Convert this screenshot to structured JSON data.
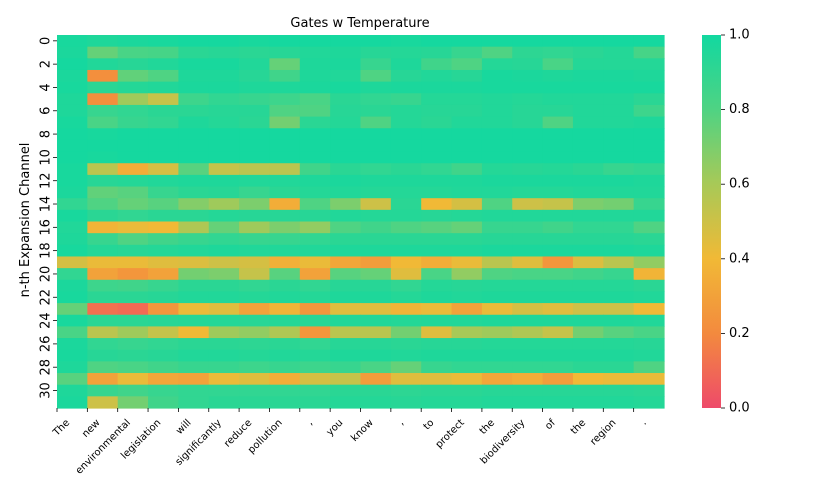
{
  "chart_data": {
    "type": "heatmap",
    "title": "Gates w Temperature",
    "ylabel": "n-th Expansion Channel",
    "xlabel": "",
    "x_tokens": [
      "The",
      "new",
      "environmental",
      "legislation",
      "will",
      "significantly",
      "reduce",
      "pollution",
      ",",
      "you",
      "know",
      ",",
      "to",
      "protect",
      "the",
      "biodiversity",
      "of",
      "the",
      "region",
      "."
    ],
    "y_tick_labels": [
      "0",
      "2",
      "4",
      "6",
      "8",
      "10",
      "12",
      "14",
      "16",
      "18",
      "20",
      "22",
      "24",
      "26",
      "28",
      "30"
    ],
    "colorbar": {
      "min": 0.0,
      "max": 1.0,
      "ticks": [
        "0.0",
        "0.2",
        "0.4",
        "0.6",
        "0.8",
        "1.0"
      ],
      "colors": [
        "#ee4a6a",
        "#f38a3e",
        "#f1b936",
        "#a8c957",
        "#4fd383",
        "#12d8a0"
      ]
    },
    "grid": false,
    "values": [
      [
        0.98,
        0.96,
        0.97,
        0.98,
        0.99,
        0.99,
        0.98,
        0.99,
        0.99,
        0.99,
        0.99,
        0.98,
        0.99,
        0.99,
        0.99,
        0.99,
        0.99,
        0.99,
        0.99,
        0.99
      ],
      [
        0.97,
        0.75,
        0.82,
        0.83,
        0.92,
        0.93,
        0.92,
        0.93,
        0.95,
        0.96,
        0.93,
        0.94,
        0.93,
        0.88,
        0.8,
        0.91,
        0.9,
        0.92,
        0.94,
        0.83
      ],
      [
        0.99,
        0.95,
        0.93,
        0.95,
        0.98,
        0.98,
        0.95,
        0.75,
        0.96,
        0.97,
        0.88,
        0.96,
        0.85,
        0.8,
        0.94,
        0.93,
        0.82,
        0.94,
        0.94,
        0.94
      ],
      [
        0.97,
        0.22,
        0.76,
        0.8,
        0.96,
        0.96,
        0.93,
        0.85,
        0.96,
        0.95,
        0.8,
        0.93,
        0.95,
        0.93,
        0.98,
        0.97,
        0.96,
        0.97,
        0.97,
        0.96
      ],
      [
        0.98,
        0.92,
        0.94,
        0.95,
        0.97,
        0.97,
        0.96,
        0.96,
        0.97,
        0.98,
        0.96,
        0.97,
        0.97,
        0.97,
        0.98,
        0.98,
        0.98,
        0.98,
        0.98,
        0.98
      ],
      [
        0.96,
        0.22,
        0.62,
        0.52,
        0.86,
        0.9,
        0.88,
        0.86,
        0.82,
        0.92,
        0.9,
        0.88,
        0.94,
        0.94,
        0.95,
        0.94,
        0.95,
        0.95,
        0.95,
        0.92
      ],
      [
        0.96,
        0.88,
        0.9,
        0.92,
        0.92,
        0.93,
        0.93,
        0.8,
        0.8,
        0.93,
        0.92,
        0.94,
        0.93,
        0.93,
        0.95,
        0.93,
        0.93,
        0.95,
        0.95,
        0.86
      ],
      [
        0.98,
        0.82,
        0.88,
        0.9,
        0.96,
        0.94,
        0.92,
        0.72,
        0.92,
        0.94,
        0.8,
        0.94,
        0.92,
        0.95,
        0.95,
        0.93,
        0.8,
        0.95,
        0.95,
        0.96
      ],
      [
        0.99,
        0.98,
        0.99,
        0.99,
        0.99,
        0.99,
        0.99,
        0.99,
        0.99,
        0.99,
        0.99,
        0.99,
        0.99,
        0.99,
        0.99,
        0.99,
        0.99,
        0.99,
        0.99,
        0.99
      ],
      [
        0.99,
        0.99,
        0.99,
        0.99,
        0.99,
        0.99,
        0.99,
        0.99,
        0.99,
        0.99,
        0.99,
        0.99,
        0.99,
        0.99,
        0.99,
        0.99,
        0.99,
        0.99,
        0.99,
        0.99
      ],
      [
        0.99,
        0.98,
        0.99,
        0.99,
        0.99,
        0.99,
        0.99,
        0.99,
        0.99,
        0.99,
        0.99,
        0.99,
        0.99,
        0.99,
        0.99,
        0.99,
        0.99,
        0.99,
        0.99,
        0.99
      ],
      [
        0.98,
        0.55,
        0.35,
        0.48,
        0.78,
        0.52,
        0.55,
        0.55,
        0.85,
        0.92,
        0.9,
        0.92,
        0.9,
        0.85,
        0.94,
        0.93,
        0.94,
        0.92,
        0.88,
        0.9
      ],
      [
        0.98,
        0.93,
        0.94,
        0.95,
        0.96,
        0.96,
        0.95,
        0.95,
        0.96,
        0.97,
        0.96,
        0.96,
        0.96,
        0.96,
        0.97,
        0.97,
        0.97,
        0.97,
        0.97,
        0.96
      ],
      [
        0.97,
        0.76,
        0.78,
        0.88,
        0.92,
        0.93,
        0.88,
        0.92,
        0.94,
        0.95,
        0.94,
        0.94,
        0.94,
        0.95,
        0.95,
        0.94,
        0.94,
        0.95,
        0.95,
        0.95
      ],
      [
        0.9,
        0.8,
        0.75,
        0.78,
        0.68,
        0.62,
        0.7,
        0.35,
        0.8,
        0.7,
        0.5,
        0.92,
        0.4,
        0.48,
        0.8,
        0.5,
        0.52,
        0.7,
        0.72,
        0.88
      ],
      [
        0.98,
        0.92,
        0.9,
        0.92,
        0.92,
        0.94,
        0.93,
        0.93,
        0.93,
        0.95,
        0.94,
        0.94,
        0.93,
        0.94,
        0.95,
        0.95,
        0.95,
        0.95,
        0.95,
        0.95
      ],
      [
        0.95,
        0.38,
        0.42,
        0.4,
        0.58,
        0.75,
        0.62,
        0.7,
        0.65,
        0.8,
        0.85,
        0.8,
        0.78,
        0.75,
        0.88,
        0.88,
        0.85,
        0.9,
        0.9,
        0.8
      ],
      [
        0.96,
        0.88,
        0.8,
        0.85,
        0.88,
        0.9,
        0.88,
        0.88,
        0.9,
        0.92,
        0.92,
        0.92,
        0.92,
        0.92,
        0.93,
        0.93,
        0.93,
        0.93,
        0.93,
        0.92
      ],
      [
        0.98,
        0.94,
        0.93,
        0.94,
        0.95,
        0.96,
        0.95,
        0.95,
        0.95,
        0.96,
        0.96,
        0.96,
        0.96,
        0.96,
        0.97,
        0.97,
        0.97,
        0.97,
        0.97,
        0.96
      ],
      [
        0.48,
        0.42,
        0.42,
        0.45,
        0.46,
        0.5,
        0.48,
        0.36,
        0.42,
        0.32,
        0.28,
        0.4,
        0.35,
        0.42,
        0.55,
        0.45,
        0.25,
        0.46,
        0.55,
        0.65
      ],
      [
        0.9,
        0.3,
        0.25,
        0.3,
        0.72,
        0.7,
        0.52,
        0.78,
        0.3,
        0.78,
        0.75,
        0.45,
        0.82,
        0.65,
        0.8,
        0.82,
        0.82,
        0.85,
        0.88,
        0.38
      ],
      [
        0.97,
        0.86,
        0.85,
        0.88,
        0.92,
        0.92,
        0.9,
        0.92,
        0.9,
        0.93,
        0.93,
        0.9,
        0.94,
        0.93,
        0.94,
        0.94,
        0.94,
        0.94,
        0.94,
        0.92
      ],
      [
        0.98,
        0.92,
        0.92,
        0.93,
        0.95,
        0.95,
        0.94,
        0.95,
        0.94,
        0.96,
        0.96,
        0.94,
        0.96,
        0.95,
        0.96,
        0.96,
        0.96,
        0.96,
        0.96,
        0.95
      ],
      [
        0.75,
        0.12,
        0.1,
        0.25,
        0.42,
        0.45,
        0.3,
        0.38,
        0.25,
        0.45,
        0.45,
        0.38,
        0.42,
        0.3,
        0.42,
        0.48,
        0.45,
        0.5,
        0.5,
        0.4
      ],
      [
        0.98,
        0.92,
        0.92,
        0.93,
        0.94,
        0.94,
        0.93,
        0.94,
        0.93,
        0.95,
        0.95,
        0.94,
        0.95,
        0.95,
        0.96,
        0.96,
        0.96,
        0.96,
        0.96,
        0.95
      ],
      [
        0.82,
        0.55,
        0.62,
        0.52,
        0.4,
        0.62,
        0.65,
        0.58,
        0.25,
        0.55,
        0.55,
        0.72,
        0.45,
        0.6,
        0.62,
        0.58,
        0.52,
        0.72,
        0.78,
        0.82
      ],
      [
        0.97,
        0.9,
        0.88,
        0.9,
        0.92,
        0.92,
        0.91,
        0.92,
        0.9,
        0.93,
        0.93,
        0.92,
        0.93,
        0.93,
        0.94,
        0.94,
        0.94,
        0.94,
        0.94,
        0.93
      ],
      [
        0.98,
        0.93,
        0.92,
        0.93,
        0.95,
        0.95,
        0.94,
        0.95,
        0.94,
        0.96,
        0.96,
        0.95,
        0.96,
        0.96,
        0.96,
        0.96,
        0.96,
        0.96,
        0.96,
        0.95
      ],
      [
        0.96,
        0.8,
        0.82,
        0.85,
        0.88,
        0.88,
        0.86,
        0.88,
        0.86,
        0.88,
        0.82,
        0.75,
        0.88,
        0.9,
        0.9,
        0.9,
        0.9,
        0.92,
        0.92,
        0.8
      ],
      [
        0.78,
        0.3,
        0.42,
        0.32,
        0.3,
        0.42,
        0.45,
        0.35,
        0.48,
        0.52,
        0.28,
        0.45,
        0.45,
        0.42,
        0.32,
        0.35,
        0.28,
        0.4,
        0.42,
        0.42
      ],
      [
        0.96,
        0.88,
        0.85,
        0.88,
        0.9,
        0.9,
        0.9,
        0.9,
        0.9,
        0.92,
        0.92,
        0.91,
        0.92,
        0.92,
        0.93,
        0.93,
        0.93,
        0.93,
        0.93,
        0.92
      ],
      [
        0.97,
        0.5,
        0.72,
        0.85,
        0.9,
        0.92,
        0.92,
        0.92,
        0.92,
        0.94,
        0.94,
        0.93,
        0.94,
        0.94,
        0.95,
        0.95,
        0.95,
        0.95,
        0.95,
        0.94
      ]
    ]
  }
}
